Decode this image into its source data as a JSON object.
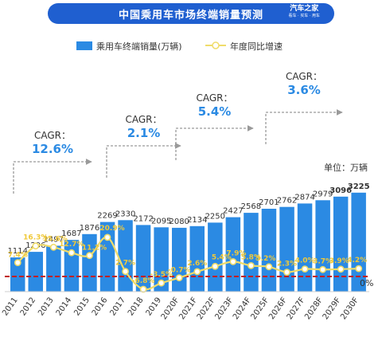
{
  "banner": {
    "title": "中国乘用车市场终端销量预测",
    "logo_main": "汽车之家",
    "logo_sub": "看车 · 买车 · 用车"
  },
  "chart_data": {
    "type": "bar",
    "title": "中国乘用车市场终端销量预测",
    "categories": [
      "2011",
      "2012",
      "2013",
      "2014",
      "2015",
      "2016",
      "2017",
      "2018",
      "2019",
      "2020F",
      "2021F",
      "2022F",
      "2023F",
      "2024F",
      "2025F",
      "2026F",
      "2027F",
      "2028F",
      "2029F",
      "2030F"
    ],
    "series": [
      {
        "name": "乘用车终端销量(万辆)",
        "type": "bar",
        "values": [
          1114,
          1296,
          1497,
          1687,
          1876,
          2269,
          2330,
          2172,
          2095,
          2080,
          2134,
          2250,
          2427,
          2568,
          2701,
          2762,
          2874,
          2979,
          3096,
          3225
        ]
      },
      {
        "name": "年度同比增速",
        "type": "line",
        "values": [
          7.4,
          16.3,
          15.6,
          12.7,
          11.2,
          20.9,
          2.7,
          -6.8,
          -3.5,
          -0.7,
          2.6,
          5.4,
          7.9,
          5.8,
          5.2,
          2.3,
          4.0,
          3.7,
          3.9,
          4.2
        ]
      }
    ],
    "value_labels": [
      "1114",
      "1296",
      "1497",
      "1687",
      "1876",
      "2269",
      "2330",
      "2172",
      "2095",
      "2080",
      "2134",
      "2250",
      "2427",
      "2568",
      "2701",
      "2762",
      "2874",
      "2979",
      "3096",
      "3225"
    ],
    "rate_labels": [
      "7.4%",
      "16.3%",
      "15.6%",
      "12.7%",
      "11.2%",
      "20.9%",
      "2.7%",
      "-6.8%",
      "-3.5%",
      "-0.7%",
      "2.6%",
      "5.4%",
      "7.9%",
      "5.8%",
      "5.2%",
      "2.3%",
      "4.0%",
      "3.7%",
      "3.9%",
      "4.2%"
    ],
    "zero_label": "0%",
    "unit_label": "单位：万辆",
    "cagr": [
      {
        "label": "CAGR：",
        "value": "12.6%",
        "from": "2011",
        "to": "2015"
      },
      {
        "label": "CAGR：",
        "value": "2.1%",
        "from": "2016",
        "to": "2020F"
      },
      {
        "label": "CAGR：",
        "value": "5.4%",
        "from": "2021F",
        "to": "2025F"
      },
      {
        "label": "CAGR：",
        "value": "3.6%",
        "from": "2026F",
        "to": "2030F"
      }
    ],
    "legend_position": "top-left",
    "colors": {
      "bar": "#2b8ae3",
      "line": "#f0dc6a",
      "zero_line": "#c0201e",
      "cagr_value": "#2b8ae3",
      "banner": "#1f5fd0",
      "bar_label": "#333333",
      "rate_label": "#f0c93a",
      "arrow": "#9a9a9a"
    },
    "grid": false
  }
}
